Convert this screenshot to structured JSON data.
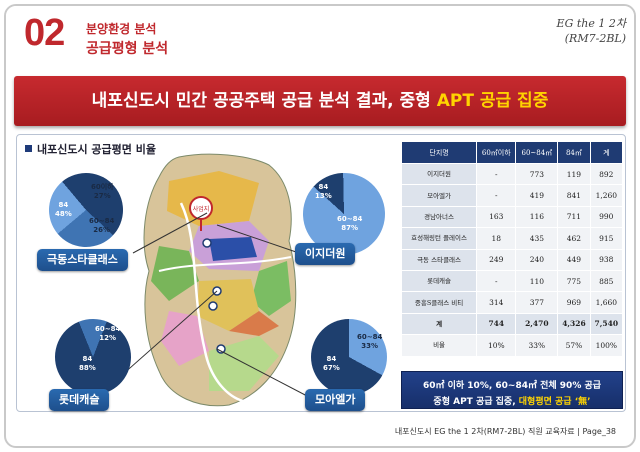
{
  "header": {
    "section_no": "02",
    "title_small": "분양환경 분석",
    "title_main": "공급평형 분석",
    "project_line1": "EG the 1 2차",
    "project_line2": "(RM7-2BL)"
  },
  "banner": {
    "prefix": "내포신도시 민간 공공주택 공급 분석 결과, 중형 ",
    "highlight": "APT 공급 집중"
  },
  "left": {
    "title": "내포신도시 공급평면 비율",
    "site_marker": "사업지"
  },
  "sites": [
    {
      "name": "극동스타클래스",
      "slices": [
        {
          "label": "84",
          "pct": "48%"
        },
        {
          "label": "60이하",
          "pct": "27%"
        },
        {
          "label": "60~84",
          "pct": "26%"
        }
      ]
    },
    {
      "name": "이지더원",
      "slices": [
        {
          "label": "84",
          "pct": "13%"
        },
        {
          "label": "60~84",
          "pct": "87%"
        }
      ]
    },
    {
      "name": "롯데캐슬",
      "slices": [
        {
          "label": "60~84",
          "pct": "12%"
        },
        {
          "label": "84",
          "pct": "88%"
        }
      ]
    },
    {
      "name": "모아엘가",
      "slices": [
        {
          "label": "60~84",
          "pct": "33%"
        },
        {
          "label": "84",
          "pct": "67%"
        }
      ]
    }
  ],
  "table": {
    "headers": [
      "단지명",
      "60㎡이하",
      "60~84㎡",
      "84㎡",
      "계"
    ],
    "rows": [
      [
        "이지더원",
        "-",
        "773",
        "119",
        "892"
      ],
      [
        "모아엘가",
        "-",
        "419",
        "841",
        "1,260"
      ],
      [
        "경남아너스",
        "163",
        "116",
        "711",
        "990"
      ],
      [
        "효성해링턴 플레이스",
        "18",
        "435",
        "462",
        "915"
      ],
      [
        "극동 스타클래스",
        "249",
        "240",
        "449",
        "938"
      ],
      [
        "롯데캐슬",
        "-",
        "110",
        "775",
        "885"
      ],
      [
        "중흥S클래스 비티",
        "314",
        "377",
        "969",
        "1,660"
      ]
    ],
    "sum": [
      "계",
      "744",
      "2,470",
      "4,326",
      "7,540"
    ],
    "ratio": [
      "비율",
      "10%",
      "33%",
      "57%",
      "100%"
    ]
  },
  "summary": {
    "line1": "60㎡ 이하 10%, 60~84㎡ 전체 90% 공급",
    "line2_prefix": "중형 APT 공급 집중, ",
    "line2_highlight": "대형평면 공급 ‘無’"
  },
  "footer": {
    "text": "내포신도시 EG the 1 2차(RM7-2BL) 직원 교육자료 | Page_38"
  },
  "colors": {
    "brand_red": "#c0282d",
    "navy": "#1f3b73",
    "pie_dark": "#1e3f6e",
    "pie_mid": "#3f74b3",
    "pie_light": "#6fa3df",
    "highlight_yellow": "#ffd400"
  }
}
